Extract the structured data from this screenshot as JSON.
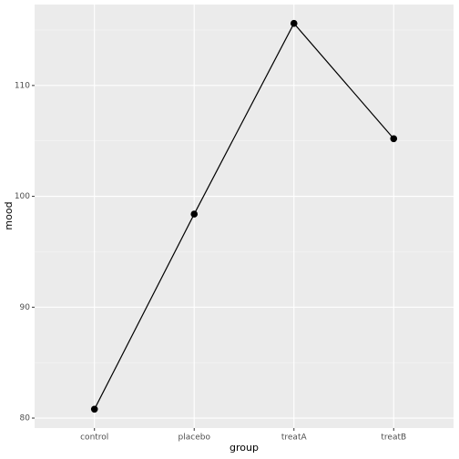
{
  "chart_data": {
    "type": "line",
    "x_label": "group",
    "y_label": "mood",
    "categories": [
      "control",
      "placebo",
      "treatA",
      "treatB"
    ],
    "values": [
      80.8,
      98.4,
      115.6,
      105.2
    ],
    "color": "#000000",
    "ylim": [
      79.1,
      117.3
    ],
    "yticks": [
      80,
      90,
      100,
      110
    ],
    "grid": true,
    "minor_grid": true
  }
}
